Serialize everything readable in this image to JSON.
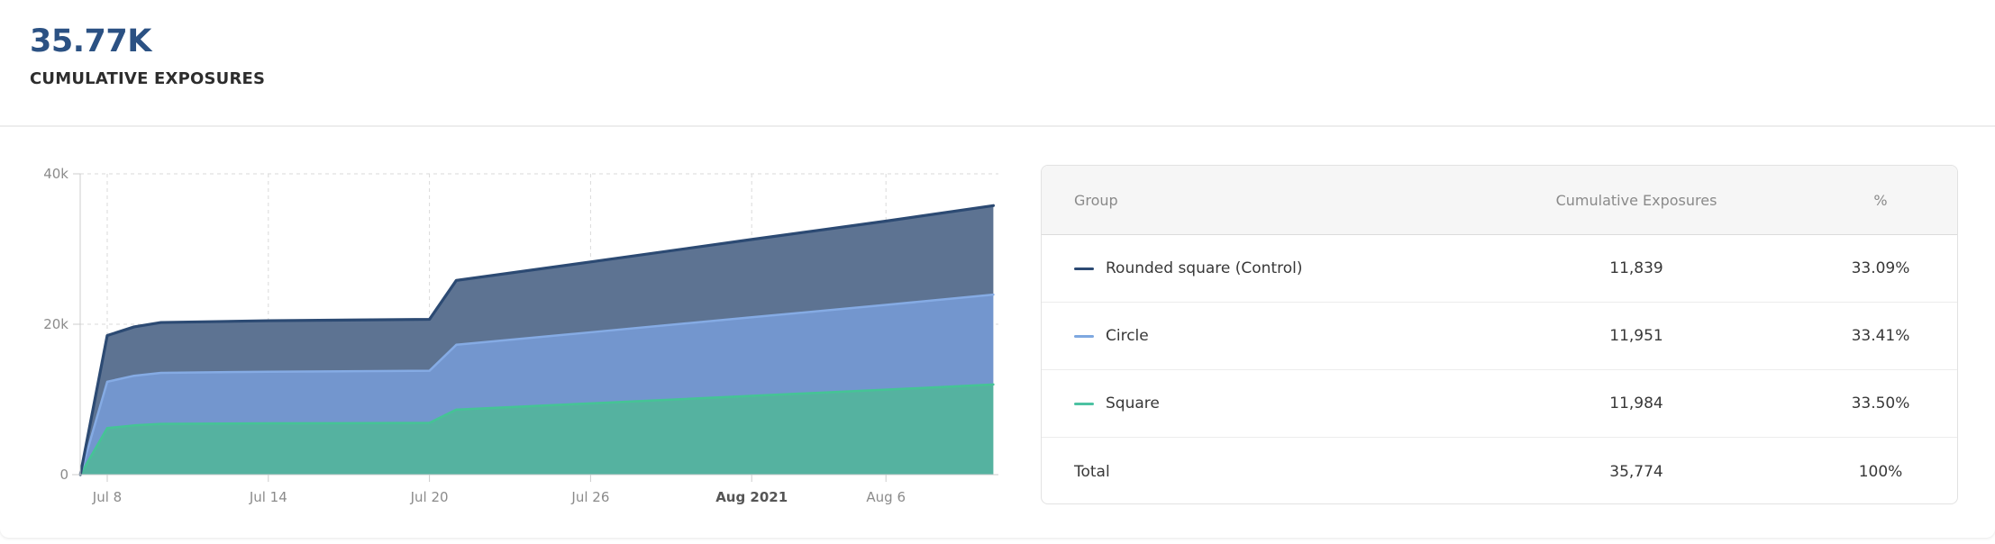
{
  "header": {
    "value": "35.77K",
    "label": "CUMULATIVE EXPOSURES"
  },
  "chart_data": {
    "type": "area",
    "stacked": true,
    "title": "",
    "xlabel": "",
    "ylabel": "",
    "ylim": [
      0,
      40000
    ],
    "grid": "dashed",
    "legend_position": "table-right",
    "x_unit": "days (day 1 = Jul 8, 2021)",
    "days": [
      0,
      1,
      2,
      3,
      7,
      13,
      14,
      19,
      25,
      30,
      34
    ],
    "x_ticks": [
      {
        "day": 1,
        "label": "Jul 8",
        "bold": false
      },
      {
        "day": 7,
        "label": "Jul 14",
        "bold": false
      },
      {
        "day": 13,
        "label": "Jul 20",
        "bold": false
      },
      {
        "day": 19,
        "label": "Jul 26",
        "bold": false
      },
      {
        "day": 25,
        "label": "Aug 2021",
        "bold": true
      },
      {
        "day": 30,
        "label": "Aug 6",
        "bold": false
      }
    ],
    "y_ticks": [
      {
        "value": 0,
        "label": "0"
      },
      {
        "value": 20000,
        "label": "20k"
      },
      {
        "value": 40000,
        "label": "40k"
      }
    ],
    "order": "bottom-to-top",
    "series": [
      {
        "name": "Square",
        "fill": "#55b2a0",
        "stroke": "#45c495",
        "stroke_width": 2.5,
        "values": [
          0,
          6200,
          6550,
          6750,
          6820,
          6880,
          8650,
          9480,
          10480,
          11300,
          11984
        ]
      },
      {
        "name": "Circle",
        "fill": "#7396ce",
        "stroke": "#85abe4",
        "stroke_width": 2.5,
        "values": [
          0,
          6150,
          6600,
          6780,
          6870,
          6930,
          8620,
          9450,
          10450,
          11270,
          11951
        ]
      },
      {
        "name": "Rounded square (Control)",
        "fill": "#5d7392",
        "stroke": "#2c4a73",
        "stroke_width": 3.2,
        "values": [
          0,
          6150,
          6500,
          6700,
          6780,
          6840,
          8560,
          9360,
          10340,
          11140,
          11839
        ]
      }
    ],
    "axis_colors": {
      "line": "#cccccc",
      "grid": "#dadada",
      "tick_label": "#8b8b8b",
      "bold_tick_label": "#555555"
    }
  },
  "table": {
    "columns": [
      "Group",
      "Cumulative Exposures",
      "%"
    ],
    "rows": [
      {
        "group": "Rounded square (Control)",
        "dash_color": "#2c4a73",
        "exposures": "11,839",
        "pct": "33.09%"
      },
      {
        "group": "Circle",
        "dash_color": "#7ea8e0",
        "exposures": "11,951",
        "pct": "33.41%"
      },
      {
        "group": "Square",
        "dash_color": "#4cc2a2",
        "exposures": "11,984",
        "pct": "33.50%"
      },
      {
        "group": "Total",
        "dash_color": null,
        "exposures": "35,774",
        "pct": "100%"
      }
    ]
  }
}
